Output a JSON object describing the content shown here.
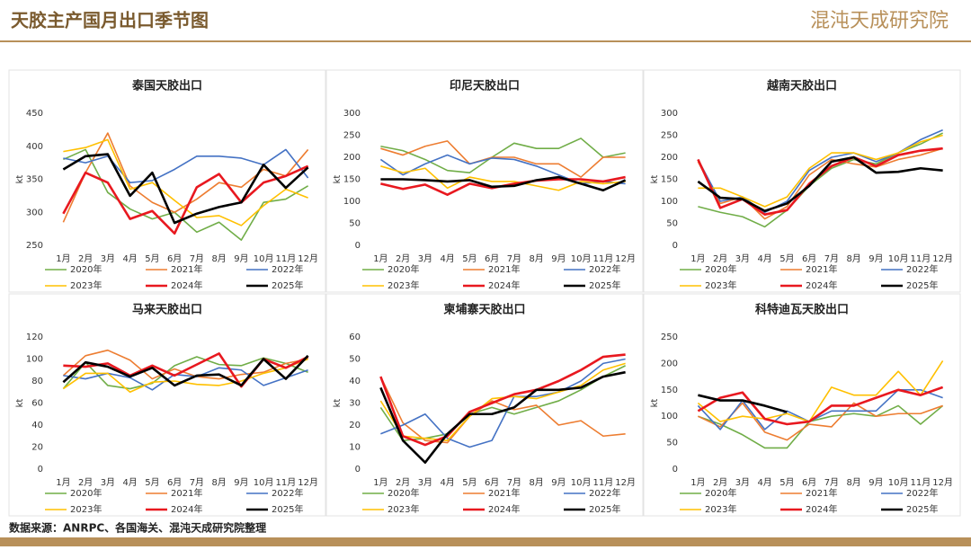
{
  "header": {
    "title": "天胶主产国月出口季节图",
    "logo": "混沌天成研究院"
  },
  "footer": {
    "source": "数据来源：ANRPC、各国海关、混沌天成研究院整理"
  },
  "chart_data": [
    {
      "type": "line",
      "title": "泰国天胶出口",
      "ylabel": "kt",
      "categories": [
        "1月",
        "2月",
        "3月",
        "4月",
        "5月",
        "6月",
        "7月",
        "8月",
        "9月",
        "10月",
        "11月",
        "12月"
      ],
      "ylim": [
        250,
        450
      ],
      "yticks": [
        250,
        300,
        350,
        400,
        450
      ],
      "series": [
        {
          "name": "2020年",
          "color": "#70ad47",
          "values": [
            380,
            395,
            330,
            305,
            290,
            300,
            270,
            285,
            258,
            315,
            320,
            340
          ]
        },
        {
          "name": "2021年",
          "color": "#ed7d31",
          "values": [
            285,
            360,
            420,
            340,
            315,
            300,
            320,
            345,
            338,
            365,
            355,
            395
          ]
        },
        {
          "name": "2022年",
          "color": "#4472c4",
          "values": [
            382,
            375,
            385,
            345,
            348,
            365,
            385,
            385,
            382,
            372,
            395,
            352
          ]
        },
        {
          "name": "2023年",
          "color": "#ffc000",
          "values": [
            392,
            398,
            410,
            335,
            345,
            318,
            292,
            295,
            280,
            310,
            335,
            322
          ]
        },
        {
          "name": "2024年",
          "color": "#e8181f",
          "values": [
            298,
            360,
            345,
            290,
            302,
            268,
            338,
            358,
            315,
            345,
            355,
            370
          ]
        },
        {
          "name": "2025年",
          "color": "#000000",
          "values": [
            365,
            385,
            388,
            325,
            360,
            284,
            298,
            308,
            315,
            372,
            337,
            368
          ]
        }
      ]
    },
    {
      "type": "line",
      "title": "印尼天胶出口",
      "ylabel": "kt",
      "categories": [
        "1月",
        "2月",
        "3月",
        "4月",
        "5月",
        "6月",
        "7月",
        "8月",
        "9月",
        "10月",
        "11月",
        "12月"
      ],
      "ylim": [
        0,
        300
      ],
      "yticks": [
        0,
        50,
        100,
        150,
        200,
        250,
        300
      ],
      "series": [
        {
          "name": "2020年",
          "color": "#70ad47",
          "values": [
            225,
            215,
            195,
            170,
            165,
            200,
            232,
            220,
            220,
            243,
            200,
            210
          ]
        },
        {
          "name": "2021年",
          "color": "#ed7d31",
          "values": [
            220,
            205,
            225,
            237,
            185,
            200,
            200,
            185,
            185,
            155,
            200,
            200
          ]
        },
        {
          "name": "2022年",
          "color": "#4472c4",
          "values": [
            195,
            160,
            185,
            205,
            185,
            198,
            195,
            180,
            160,
            140,
            145,
            140
          ]
        },
        {
          "name": "2023年",
          "color": "#ffc000",
          "values": [
            180,
            165,
            175,
            130,
            155,
            145,
            145,
            135,
            125,
            145,
            140,
            145
          ]
        },
        {
          "name": "2024年",
          "color": "#e8181f",
          "values": [
            140,
            128,
            138,
            115,
            140,
            130,
            140,
            147,
            150,
            150,
            145,
            155
          ]
        },
        {
          "name": "2025年",
          "color": "#000000",
          "values": [
            150,
            150,
            148,
            145,
            148,
            133,
            135,
            148,
            155,
            140,
            125,
            148
          ]
        }
      ]
    },
    {
      "type": "line",
      "title": "越南天胶出口",
      "ylabel": "kt",
      "categories": [
        "1月",
        "2月",
        "3月",
        "4月",
        "5月",
        "6月",
        "7月",
        "8月",
        "9月",
        "10月",
        "11月",
        "12月"
      ],
      "ylim": [
        0,
        300
      ],
      "yticks": [
        0,
        50,
        100,
        150,
        200,
        250,
        300
      ],
      "series": [
        {
          "name": "2020年",
          "color": "#70ad47",
          "values": [
            88,
            75,
            65,
            42,
            80,
            135,
            175,
            195,
            185,
            210,
            230,
            255
          ]
        },
        {
          "name": "2021年",
          "color": "#ed7d31",
          "values": [
            190,
            95,
            110,
            60,
            88,
            160,
            195,
            185,
            178,
            195,
            205,
            220
          ]
        },
        {
          "name": "2022年",
          "color": "#4472c4",
          "values": [
            195,
            100,
            110,
            75,
            100,
            170,
            200,
            210,
            190,
            210,
            240,
            262
          ]
        },
        {
          "name": "2023年",
          "color": "#ffc000",
          "values": [
            130,
            130,
            110,
            88,
            110,
            175,
            210,
            210,
            195,
            210,
            235,
            250
          ]
        },
        {
          "name": "2024年",
          "color": "#e8181f",
          "values": [
            195,
            85,
            105,
            70,
            80,
            140,
            180,
            200,
            180,
            205,
            215,
            220
          ]
        },
        {
          "name": "2025年",
          "color": "#000000",
          "values": [
            145,
            108,
            105,
            78,
            95,
            135,
            190,
            200,
            165,
            167,
            175,
            170
          ]
        }
      ]
    },
    {
      "type": "line",
      "title": "马来天胶出口",
      "ylabel": "kt",
      "categories": [
        "1月",
        "2月",
        "3月",
        "4月",
        "5月",
        "6月",
        "7月",
        "8月",
        "9月",
        "10月",
        "11月",
        "12月"
      ],
      "ylim": [
        0,
        120
      ],
      "yticks": [
        0,
        20,
        40,
        60,
        80,
        100,
        120
      ],
      "series": [
        {
          "name": "2020年",
          "color": "#70ad47",
          "values": [
            73,
            97,
            76,
            73,
            78,
            94,
            102,
            95,
            94,
            101,
            96,
            88
          ]
        },
        {
          "name": "2021年",
          "color": "#ed7d31",
          "values": [
            85,
            103,
            108,
            99,
            82,
            91,
            84,
            82,
            86,
            88,
            96,
            100
          ]
        },
        {
          "name": "2022年",
          "color": "#4472c4",
          "values": [
            85,
            82,
            87,
            83,
            72,
            86,
            84,
            92,
            90,
            76,
            83,
            90
          ]
        },
        {
          "name": "2023年",
          "color": "#ffc000",
          "values": [
            73,
            87,
            87,
            70,
            79,
            80,
            77,
            76,
            80,
            87,
            92,
            100
          ]
        },
        {
          "name": "2024年",
          "color": "#e8181f",
          "values": [
            94,
            93,
            96,
            85,
            94,
            85,
            95,
            105,
            75,
            100,
            92,
            102
          ]
        },
        {
          "name": "2025年",
          "color": "#000000",
          "values": [
            79,
            97,
            93,
            84,
            92,
            76,
            85,
            86,
            76,
            100,
            82,
            103
          ]
        }
      ]
    },
    {
      "type": "line",
      "title": "柬埔寨天胶出口",
      "ylabel": "kt",
      "categories": [
        "1月",
        "2月",
        "3月",
        "4月",
        "5月",
        "6月",
        "7月",
        "8月",
        "9月",
        "10月",
        "11月",
        "12月"
      ],
      "ylim": [
        0,
        60
      ],
      "yticks": [
        0,
        10,
        20,
        30,
        40,
        50,
        60
      ],
      "series": [
        {
          "name": "2020年",
          "color": "#70ad47",
          "values": [
            28,
            13,
            14,
            16,
            25,
            28,
            25,
            28,
            31,
            36,
            42,
            47
          ]
        },
        {
          "name": "2021年",
          "color": "#ed7d31",
          "values": [
            42,
            21,
            13,
            12,
            24,
            31,
            27,
            29,
            20,
            22,
            15,
            16
          ]
        },
        {
          "name": "2022年",
          "color": "#4472c4",
          "values": [
            16,
            20,
            25,
            14,
            10,
            13,
            33,
            33,
            35,
            40,
            48,
            50
          ]
        },
        {
          "name": "2023年",
          "color": "#ffc000",
          "values": [
            31,
            15,
            14,
            13,
            24,
            32,
            33,
            32,
            35,
            38,
            45,
            48
          ]
        },
        {
          "name": "2024年",
          "color": "#e8181f",
          "values": [
            42,
            15,
            11,
            15,
            26,
            30,
            34,
            36,
            40,
            45,
            51,
            52
          ]
        },
        {
          "name": "2025年",
          "color": "#000000",
          "values": [
            37,
            13,
            3,
            16,
            25,
            25,
            28,
            36,
            36,
            37,
            42,
            44
          ]
        }
      ]
    },
    {
      "type": "line",
      "title": "科特迪瓦天胶出口",
      "ylabel": "kt",
      "categories": [
        "1月",
        "2月",
        "3月",
        "4月",
        "5月",
        "6月",
        "7月",
        "8月",
        "9月",
        "10月",
        "11月",
        "12月"
      ],
      "ylim": [
        0,
        250
      ],
      "yticks": [
        0,
        50,
        100,
        150,
        200,
        250
      ],
      "series": [
        {
          "name": "2020年",
          "color": "#70ad47",
          "values": [
            100,
            85,
            65,
            40,
            40,
            90,
            100,
            105,
            100,
            120,
            85,
            120
          ]
        },
        {
          "name": "2021年",
          "color": "#ed7d31",
          "values": [
            100,
            80,
            125,
            70,
            55,
            85,
            80,
            125,
            100,
            105,
            105,
            120
          ]
        },
        {
          "name": "2022年",
          "color": "#4472c4",
          "values": [
            120,
            75,
            130,
            75,
            110,
            90,
            110,
            110,
            110,
            150,
            150,
            135
          ]
        },
        {
          "name": "2023年",
          "color": "#ffc000",
          "values": [
            125,
            90,
            100,
            95,
            105,
            90,
            155,
            140,
            140,
            185,
            140,
            205
          ]
        },
        {
          "name": "2024年",
          "color": "#e8181f",
          "values": [
            110,
            135,
            145,
            95,
            85,
            90,
            120,
            120,
            135,
            150,
            140,
            155
          ]
        },
        {
          "name": "2025年",
          "color": "#000000",
          "values": [
            140,
            130,
            130,
            120,
            108,
            null,
            null,
            null,
            null,
            null,
            null,
            null
          ]
        }
      ]
    }
  ]
}
